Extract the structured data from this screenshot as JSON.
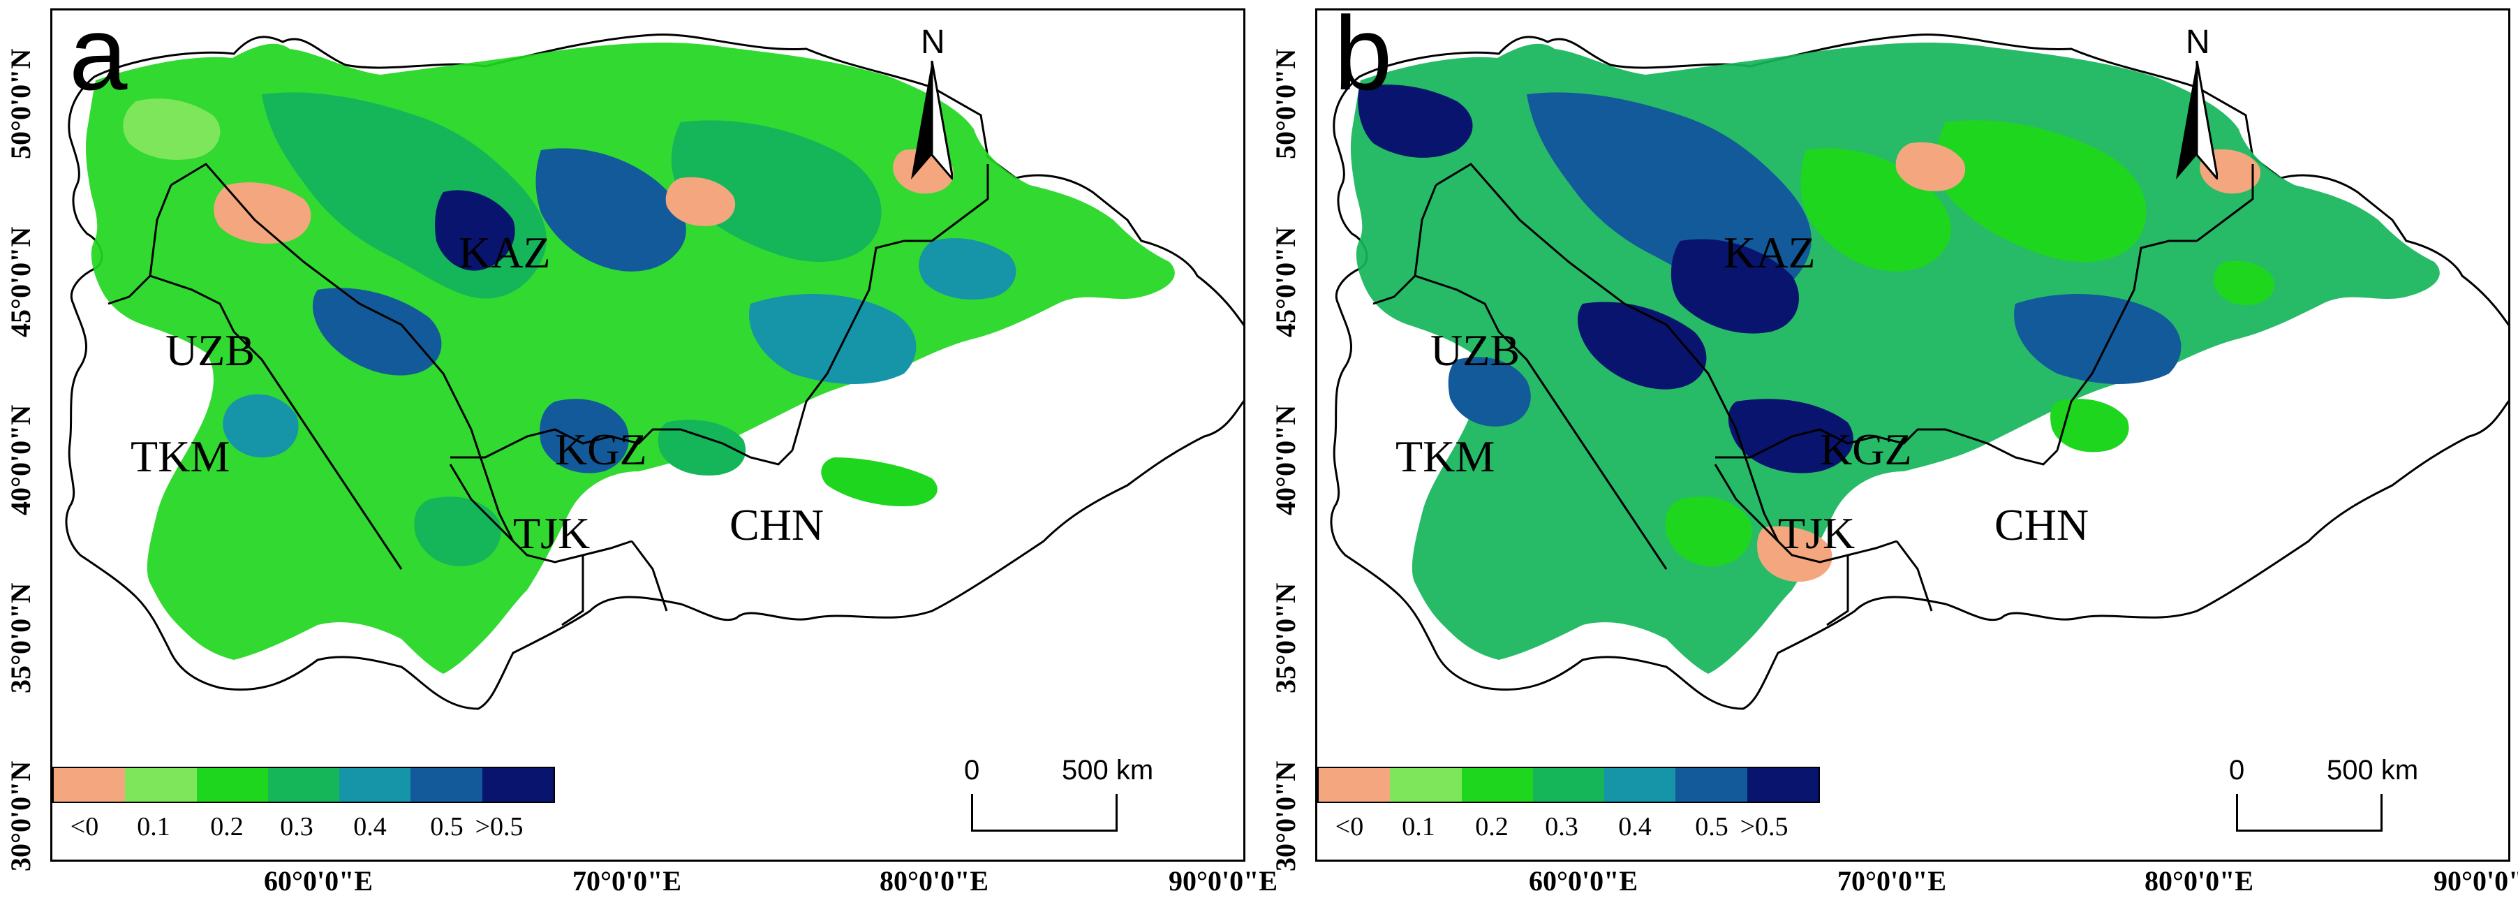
{
  "figure": {
    "panels": [
      {
        "id": "a",
        "label": "a",
        "countries": {
          "kaz": "KAZ",
          "uzb": "UZB",
          "tkm": "TKM",
          "kgz": "KGZ",
          "tjk": "TJK",
          "chn": "CHN"
        },
        "north_label": "N"
      },
      {
        "id": "b",
        "label": "b",
        "countries": {
          "kaz": "KAZ",
          "uzb": "UZB",
          "tkm": "TKM",
          "kgz": "KGZ",
          "tjk": "TJK",
          "chn": "CHN"
        },
        "north_label": "N"
      }
    ],
    "axes": {
      "lat_labels": [
        "50°0'0\"N",
        "45°0'0\"N",
        "40°0'0\"N",
        "35°0'0\"N",
        "30°0'0\"N"
      ],
      "lon_labels": [
        "60°0'0\"E",
        "70°0'0\"E",
        "80°0'0\"E",
        "90°0'0\"E"
      ]
    },
    "legend": {
      "labels": [
        "<0",
        "0.1",
        "0.2",
        "0.3",
        "0.4",
        "0.5",
        ">0.5"
      ],
      "colors": [
        "#f4a77f",
        "#7ee65a",
        "#1fd61f",
        "#15b55a",
        "#1694a8",
        "#135a9a",
        "#08146e"
      ]
    },
    "scale_bar": {
      "start": "0",
      "end": "500 km"
    },
    "map_colors": {
      "background": "#ffffff",
      "green_light": "#7ee65a",
      "green": "#1fd61f",
      "green_dark": "#15b55a",
      "teal": "#1694a8",
      "blue": "#135a9a",
      "navy": "#08146e",
      "salmon": "#f4a77f"
    }
  }
}
